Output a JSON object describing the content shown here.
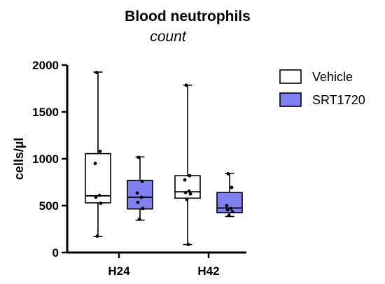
{
  "chart_data": {
    "type": "box",
    "title": "Blood neutrophils",
    "subtitle": "count",
    "xlabel": "",
    "ylabel": "cells/µl",
    "ylim": [
      0,
      2000
    ],
    "yticks": [
      0,
      500,
      1000,
      1500,
      2000
    ],
    "categories": [
      "H24",
      "H42"
    ],
    "legend_position": "right",
    "grid": false,
    "series": [
      {
        "name": "Vehicle",
        "color": "#ffffff",
        "boxes": [
          {
            "category": "H24",
            "min": 170,
            "q1": 530,
            "median": 605,
            "q3": 1055,
            "max": 1925,
            "points": [
              1920,
              1080,
              950,
              610,
              590,
              525,
              175
            ]
          },
          {
            "category": "H42",
            "min": 85,
            "q1": 580,
            "median": 648,
            "q3": 820,
            "max": 1785,
            "points": [
              1785,
              820,
              775,
              655,
              640,
              625,
              565,
              85
            ]
          }
        ]
      },
      {
        "name": "SRT1720",
        "color": "#8080f0",
        "boxes": [
          {
            "category": "H24",
            "min": 345,
            "q1": 465,
            "median": 590,
            "q3": 770,
            "max": 1020,
            "points": [
              1015,
              760,
              635,
              590,
              535,
              470,
              355
            ]
          },
          {
            "category": "H42",
            "min": 385,
            "q1": 425,
            "median": 475,
            "q3": 640,
            "max": 845,
            "points": [
              840,
              695,
              500,
              470,
              455,
              435,
              395
            ]
          }
        ]
      }
    ]
  }
}
